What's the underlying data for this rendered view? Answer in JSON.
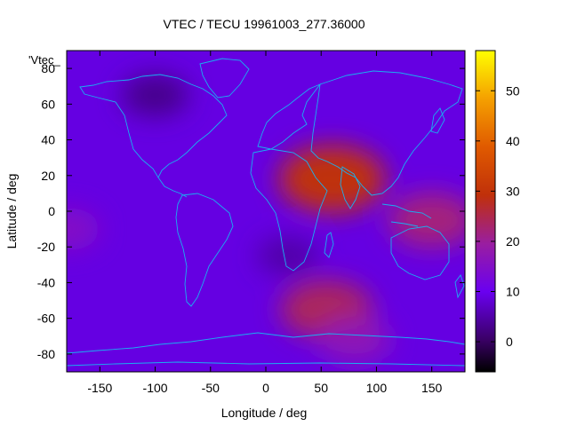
{
  "chart_data": {
    "type": "heatmap",
    "title": "VTEC / TECU 19961003_277.36000",
    "xlabel": "Longitude / deg",
    "ylabel": "Latitude / deg",
    "xlim": [
      -180,
      180
    ],
    "ylim": [
      -90,
      90
    ],
    "x_ticks": [
      "-150",
      "-100",
      "-50",
      "0",
      "50",
      "100",
      "150"
    ],
    "y_ticks": [
      "-80",
      "-60",
      "-40",
      "-20",
      "0",
      "20",
      "40",
      "60",
      "80"
    ],
    "series_key": "'Vtec_",
    "colorbar": {
      "range": [
        -6,
        58
      ],
      "ticks": [
        "0",
        "10",
        "20",
        "30",
        "40",
        "50"
      ],
      "palette": "black-purple-blue-red-orange-yellow"
    },
    "background_level": 9,
    "features": [
      {
        "name": "south-asia-peak",
        "lon": 60,
        "lat": 18,
        "value": 29
      },
      {
        "name": "southern-ocean-peak",
        "lon": 55,
        "lat": -55,
        "value": 24
      },
      {
        "name": "australia-north",
        "lon": 150,
        "lat": -5,
        "value": 22
      },
      {
        "name": "pacific-east",
        "lon": -180,
        "lat": -10,
        "value": 15
      },
      {
        "name": "antarctic-band",
        "lon": 80,
        "lat": -72,
        "value": 17
      },
      {
        "name": "north-canada-low",
        "lon": -100,
        "lat": 65,
        "value": 3
      },
      {
        "name": "south-atlantic-low",
        "lon": 20,
        "lat": -25,
        "value": 5
      }
    ],
    "grid": false,
    "coastlines": true
  }
}
